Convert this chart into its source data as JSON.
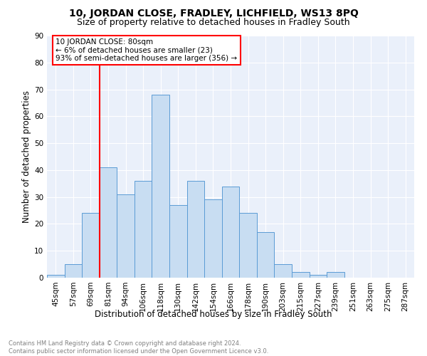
{
  "title": "10, JORDAN CLOSE, FRADLEY, LICHFIELD, WS13 8PQ",
  "subtitle": "Size of property relative to detached houses in Fradley South",
  "xlabel": "Distribution of detached houses by size in Fradley South",
  "ylabel": "Number of detached properties",
  "footnote": "Contains HM Land Registry data © Crown copyright and database right 2024.\nContains public sector information licensed under the Open Government Licence v3.0.",
  "categories": [
    "45sqm",
    "57sqm",
    "69sqm",
    "81sqm",
    "94sqm",
    "106sqm",
    "118sqm",
    "130sqm",
    "142sqm",
    "154sqm",
    "166sqm",
    "178sqm",
    "190sqm",
    "203sqm",
    "215sqm",
    "227sqm",
    "239sqm",
    "251sqm",
    "263sqm",
    "275sqm",
    "287sqm"
  ],
  "values": [
    1,
    5,
    24,
    41,
    31,
    36,
    68,
    27,
    36,
    29,
    34,
    24,
    17,
    5,
    2,
    1,
    2,
    0,
    0,
    0,
    0
  ],
  "bar_color": "#c8ddf2",
  "bar_edge_color": "#5b9bd5",
  "annotation_text_line1": "10 JORDAN CLOSE: 80sqm",
  "annotation_text_line2": "← 6% of detached houses are smaller (23)",
  "annotation_text_line3": "93% of semi-detached houses are larger (356) →",
  "annotation_box_color": "white",
  "annotation_box_edge": "red",
  "vline_color": "red",
  "ylim": [
    0,
    90
  ],
  "background_color": "#eaf0fa",
  "grid_color": "white",
  "title_fontsize": 10,
  "subtitle_fontsize": 9,
  "axis_label_fontsize": 8.5,
  "tick_fontsize": 7.5,
  "footnote_fontsize": 6.0
}
